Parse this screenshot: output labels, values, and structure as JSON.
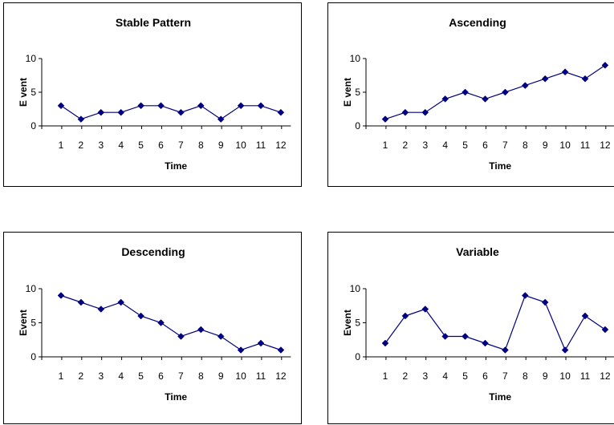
{
  "chart_data": [
    {
      "type": "line",
      "title": "Stable Pattern",
      "xlabel": "Time",
      "ylabel": "E vent",
      "x": [
        1,
        2,
        3,
        4,
        5,
        6,
        7,
        8,
        9,
        10,
        11,
        12
      ],
      "series": [
        {
          "values": [
            3,
            1,
            2,
            2,
            3,
            3,
            2,
            3,
            1,
            3,
            3,
            2
          ]
        }
      ],
      "yticks": [
        0,
        5,
        10
      ],
      "ylim": [
        0,
        10
      ],
      "grid": false,
      "color": "#000080"
    },
    {
      "type": "line",
      "title": "Ascending",
      "xlabel": "Time",
      "ylabel": "E vent",
      "x": [
        1,
        2,
        3,
        4,
        5,
        6,
        7,
        8,
        9,
        10,
        11,
        12
      ],
      "series": [
        {
          "values": [
            1,
            2,
            2,
            4,
            5,
            4,
            5,
            6,
            7,
            8,
            7,
            9
          ]
        }
      ],
      "yticks": [
        0,
        5,
        10
      ],
      "ylim": [
        0,
        10
      ],
      "grid": false,
      "color": "#000080"
    },
    {
      "type": "line",
      "title": "Descending",
      "xlabel": "Time",
      "ylabel": "Event",
      "x": [
        1,
        2,
        3,
        4,
        5,
        6,
        7,
        8,
        9,
        10,
        11,
        12
      ],
      "series": [
        {
          "values": [
            9,
            8,
            7,
            8,
            6,
            5,
            3,
            4,
            3,
            1,
            2,
            1
          ]
        }
      ],
      "yticks": [
        0,
        5,
        10
      ],
      "ylim": [
        0,
        10
      ],
      "grid": false,
      "color": "#000080"
    },
    {
      "type": "line",
      "title": "Variable",
      "xlabel": "Time",
      "ylabel": "Event",
      "x": [
        1,
        2,
        3,
        4,
        5,
        6,
        7,
        8,
        9,
        10,
        11,
        12
      ],
      "series": [
        {
          "values": [
            2,
            6,
            7,
            3,
            3,
            2,
            1,
            9,
            8,
            1,
            6,
            4
          ]
        }
      ],
      "yticks": [
        0,
        5,
        10
      ],
      "ylim": [
        0,
        10
      ],
      "grid": false,
      "color": "#000080"
    }
  ]
}
